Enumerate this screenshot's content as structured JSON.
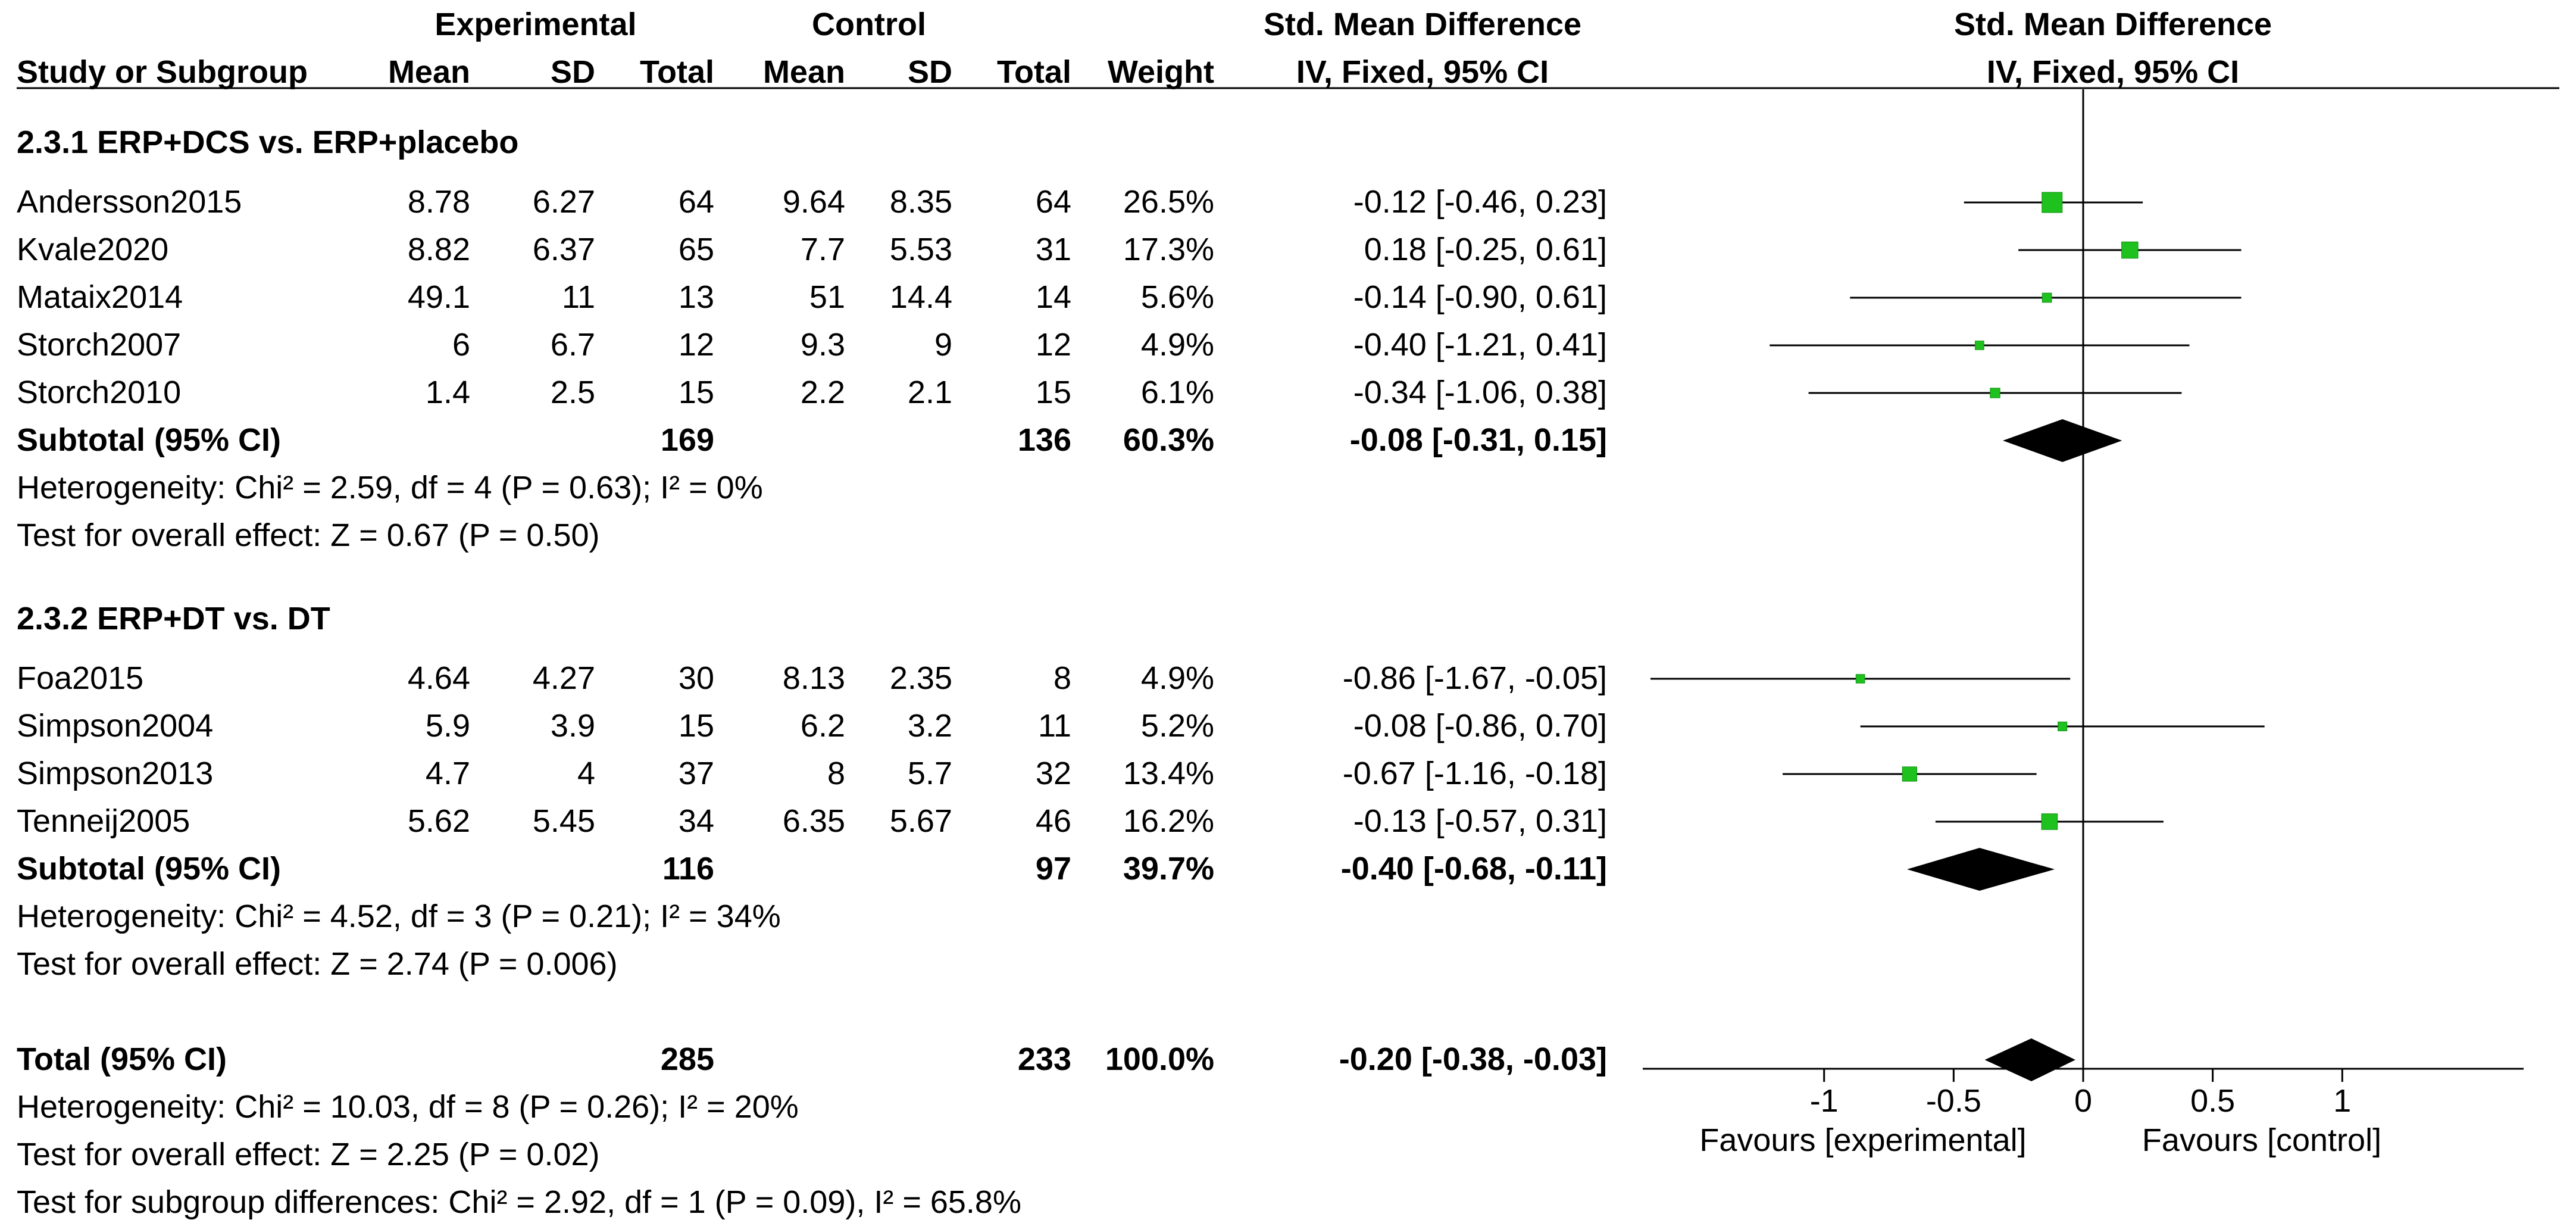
{
  "headers": {
    "experimental": "Experimental",
    "control": "Control",
    "smd_table": "Std. Mean Difference",
    "smd_plot": "Std. Mean Difference",
    "study": "Study or Subgroup",
    "exp_mean": "Mean",
    "exp_sd": "SD",
    "exp_total": "Total",
    "ctl_mean": "Mean",
    "ctl_sd": "SD",
    "ctl_total": "Total",
    "weight": "Weight",
    "method_table": "IV, Fixed, 95% CI",
    "method_plot": "IV, Fixed, 95% CI"
  },
  "rows": [
    {
      "kind": "group",
      "label": "2.3.1 ERP+DCS vs. ERP+placebo"
    },
    {
      "kind": "study",
      "name": "Andersson2015",
      "em": "8.78",
      "esd": "6.27",
      "en": "64",
      "cm": "9.64",
      "csd": "8.35",
      "cn": "64",
      "w": "26.5%",
      "ci": "-0.12 [-0.46, 0.23]"
    },
    {
      "kind": "study",
      "name": "Kvale2020",
      "em": "8.82",
      "esd": "6.37",
      "en": "65",
      "cm": "7.7",
      "csd": "5.53",
      "cn": "31",
      "w": "17.3%",
      "ci": "0.18 [-0.25, 0.61]"
    },
    {
      "kind": "study",
      "name": "Mataix2014",
      "em": "49.1",
      "esd": "11",
      "en": "13",
      "cm": "51",
      "csd": "14.4",
      "cn": "14",
      "w": "5.6%",
      "ci": "-0.14 [-0.90, 0.61]"
    },
    {
      "kind": "study",
      "name": "Storch2007",
      "em": "6",
      "esd": "6.7",
      "en": "12",
      "cm": "9.3",
      "csd": "9",
      "cn": "12",
      "w": "4.9%",
      "ci": "-0.40 [-1.21, 0.41]"
    },
    {
      "kind": "study",
      "name": "Storch2010",
      "em": "1.4",
      "esd": "2.5",
      "en": "15",
      "cm": "2.2",
      "csd": "2.1",
      "cn": "15",
      "w": "6.1%",
      "ci": "-0.34 [-1.06, 0.38]"
    },
    {
      "kind": "subtotal",
      "name": "Subtotal (95% CI)",
      "en": "169",
      "cn": "136",
      "w": "60.3%",
      "ci": "-0.08 [-0.31, 0.15]"
    },
    {
      "kind": "note",
      "label": "Heterogeneity: Chi² = 2.59, df = 4 (P = 0.63); I² = 0%"
    },
    {
      "kind": "note",
      "label": "Test for overall effect: Z = 0.67 (P = 0.50)"
    },
    {
      "kind": "blank"
    },
    {
      "kind": "group",
      "label": "2.3.2 ERP+DT vs. DT"
    },
    {
      "kind": "study",
      "name": "Foa2015",
      "em": "4.64",
      "esd": "4.27",
      "en": "30",
      "cm": "8.13",
      "csd": "2.35",
      "cn": "8",
      "w": "4.9%",
      "ci": "-0.86 [-1.67, -0.05]"
    },
    {
      "kind": "study",
      "name": "Simpson2004",
      "em": "5.9",
      "esd": "3.9",
      "en": "15",
      "cm": "6.2",
      "csd": "3.2",
      "cn": "11",
      "w": "5.2%",
      "ci": "-0.08 [-0.86, 0.70]"
    },
    {
      "kind": "study",
      "name": "Simpson2013",
      "em": "4.7",
      "esd": "4",
      "en": "37",
      "cm": "8",
      "csd": "5.7",
      "cn": "32",
      "w": "13.4%",
      "ci": "-0.67 [-1.16, -0.18]"
    },
    {
      "kind": "study",
      "name": "Tenneij2005",
      "em": "5.62",
      "esd": "5.45",
      "en": "34",
      "cm": "6.35",
      "csd": "5.67",
      "cn": "46",
      "w": "16.2%",
      "ci": "-0.13 [-0.57, 0.31]"
    },
    {
      "kind": "subtotal",
      "name": "Subtotal (95% CI)",
      "en": "116",
      "cn": "97",
      "w": "39.7%",
      "ci": "-0.40 [-0.68, -0.11]"
    },
    {
      "kind": "note",
      "label": "Heterogeneity: Chi² = 4.52, df = 3 (P = 0.21); I² = 34%"
    },
    {
      "kind": "note",
      "label": "Test for overall effect: Z = 2.74 (P = 0.006)"
    },
    {
      "kind": "blank"
    },
    {
      "kind": "subtotal",
      "name": "Total (95% CI)",
      "en": "285",
      "cn": "233",
      "w": "100.0%",
      "ci": "-0.20 [-0.38, -0.03]"
    },
    {
      "kind": "note",
      "label": "Heterogeneity: Chi² = 10.03, df = 8 (P = 0.26); I² = 20%"
    },
    {
      "kind": "note",
      "label": "Test for overall effect: Z = 2.25 (P = 0.02)"
    },
    {
      "kind": "note",
      "label": "Test for subgroup differences: Chi² = 2.92, df = 1 (P = 0.09), I² = 65.8%"
    }
  ],
  "chart_data": {
    "type": "forest",
    "xlim": [
      -1.7,
      1.7
    ],
    "x_ticks": [
      -1,
      -0.5,
      0,
      0.5,
      1
    ],
    "x_tick_labels": [
      "-1",
      "-0.5",
      "0",
      "0.5",
      "1"
    ],
    "footer_left": "Favours [experimental]",
    "footer_right": "Favours [control]",
    "colors": {
      "marker": "#1fc11f",
      "marker_border": "#0e8f0e",
      "diamond": "#000000",
      "line": "#000000"
    },
    "studies": [
      {
        "name": "Andersson2015",
        "row": 1,
        "est": -0.12,
        "lo": -0.46,
        "hi": 0.23,
        "weight": 26.5
      },
      {
        "name": "Kvale2020",
        "row": 2,
        "est": 0.18,
        "lo": -0.25,
        "hi": 0.61,
        "weight": 17.3
      },
      {
        "name": "Mataix2014",
        "row": 3,
        "est": -0.14,
        "lo": -0.9,
        "hi": 0.61,
        "weight": 5.6
      },
      {
        "name": "Storch2007",
        "row": 4,
        "est": -0.4,
        "lo": -1.21,
        "hi": 0.41,
        "weight": 4.9
      },
      {
        "name": "Storch2010",
        "row": 5,
        "est": -0.34,
        "lo": -1.06,
        "hi": 0.38,
        "weight": 6.1
      },
      {
        "name": "Foa2015",
        "row": 11,
        "est": -0.86,
        "lo": -1.67,
        "hi": -0.05,
        "weight": 4.9
      },
      {
        "name": "Simpson2004",
        "row": 12,
        "est": -0.08,
        "lo": -0.86,
        "hi": 0.7,
        "weight": 5.2
      },
      {
        "name": "Simpson2013",
        "row": 13,
        "est": -0.67,
        "lo": -1.16,
        "hi": -0.18,
        "weight": 13.4
      },
      {
        "name": "Tenneij2005",
        "row": 14,
        "est": -0.13,
        "lo": -0.57,
        "hi": 0.31,
        "weight": 16.2
      }
    ],
    "pooled": [
      {
        "name": "Subtotal 2.3.1",
        "row": 6,
        "est": -0.08,
        "lo": -0.31,
        "hi": 0.15
      },
      {
        "name": "Subtotal 2.3.2",
        "row": 15,
        "est": -0.4,
        "lo": -0.68,
        "hi": -0.11
      },
      {
        "name": "Total",
        "row": 19,
        "est": -0.2,
        "lo": -0.38,
        "hi": -0.03
      }
    ]
  }
}
